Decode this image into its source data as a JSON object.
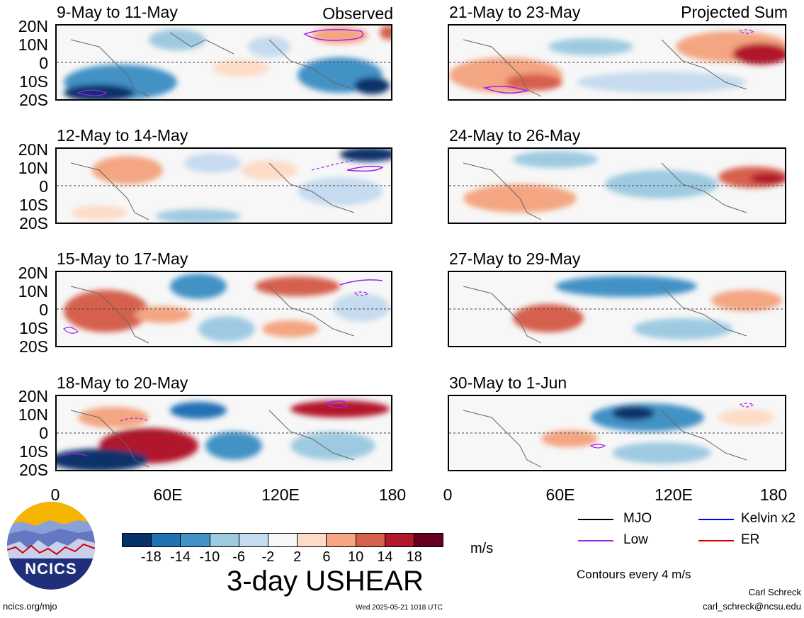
{
  "header": {
    "observed": "Observed",
    "projected": "Projected Sum"
  },
  "panels": {
    "left": [
      {
        "title": "9-May to 11-May"
      },
      {
        "title": "12-May to 14-May"
      },
      {
        "title": "15-May to 17-May"
      },
      {
        "title": "18-May to 20-May"
      }
    ],
    "right": [
      {
        "title": "21-May to 23-May"
      },
      {
        "title": "24-May to 26-May"
      },
      {
        "title": "27-May to 29-May"
      },
      {
        "title": "30-May to 1-Jun"
      }
    ]
  },
  "lat_labels": [
    "20N",
    "10N",
    "0",
    "10S",
    "20S"
  ],
  "lon_labels": [
    "0",
    "60E",
    "120E",
    "180"
  ],
  "colorbar": {
    "colors": [
      "#08306b",
      "#2171b5",
      "#4292c6",
      "#9ecae1",
      "#c6dbef",
      "#f7f7f7",
      "#fddbc7",
      "#f4a582",
      "#d6604d",
      "#b2182b",
      "#67001f"
    ],
    "labels": [
      "-18",
      "-14",
      "-10",
      "-6",
      "-2",
      "2",
      "6",
      "10",
      "14",
      "18"
    ],
    "unit": "m/s",
    "title": "3-day USHEAR"
  },
  "legend": {
    "items": [
      {
        "label": "MJO",
        "color": "#000000"
      },
      {
        "label": "Kelvin x2",
        "color": "#0000ff"
      },
      {
        "label": "Low",
        "color": "#a020f0"
      },
      {
        "label": "ER",
        "color": "#d00000"
      }
    ],
    "contours_note": "Contours every 4 m/s"
  },
  "logo": {
    "text": "NCICS"
  },
  "footer": {
    "url": "ncics.org/mjo",
    "timestamp": "Wed 2025-05-21 1018 UTC",
    "author": "Carl Schreck",
    "email": "carl_schreck@ncsu.edu"
  }
}
